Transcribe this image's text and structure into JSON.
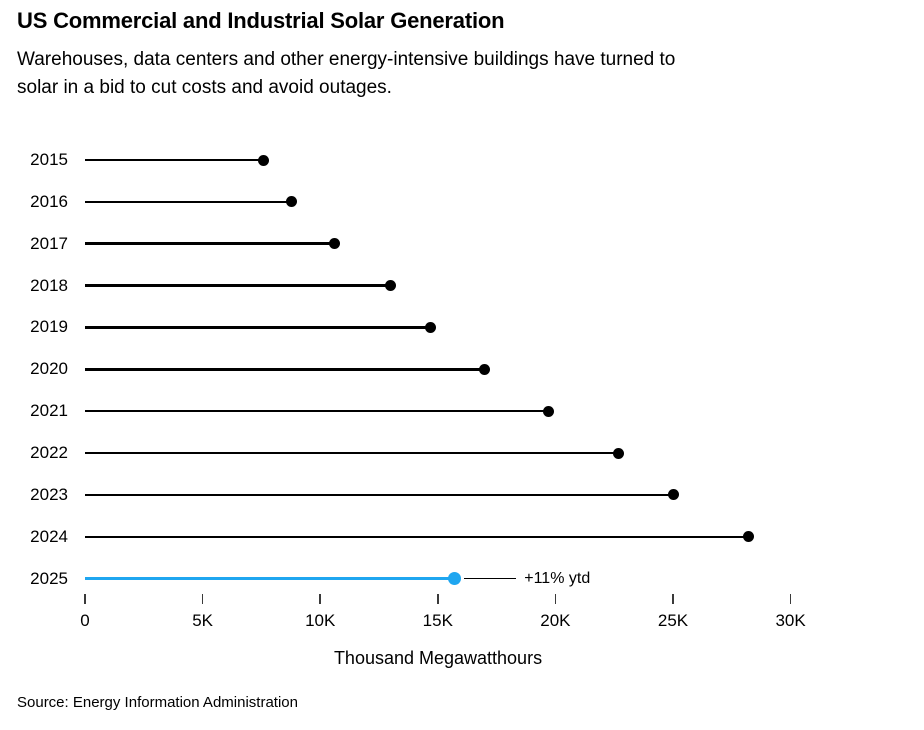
{
  "header": {
    "title": "US Commercial and Industrial Solar Generation",
    "subtitle_line1": "Warehouses, data centers and other energy-intensive buildings have turned to",
    "subtitle_line2": "solar in a bid to cut costs and avoid outages."
  },
  "chart_data": {
    "type": "bar",
    "subtype": "lollipop",
    "orientation": "horizontal",
    "title": "US Commercial and Industrial Solar Generation",
    "subtitle": "Warehouses, data centers and other energy-intensive buildings have turned to solar in a bid to cut costs and avoid outages.",
    "categories": [
      "2015",
      "2016",
      "2017",
      "2018",
      "2019",
      "2020",
      "2021",
      "2022",
      "2023",
      "2024",
      "2025"
    ],
    "values": [
      7600,
      8800,
      10600,
      13000,
      14700,
      17000,
      19700,
      22700,
      25000,
      28200,
      15700
    ],
    "units": "Thousand Megawatthours",
    "xlabel": "Thousand Megawatthours",
    "ylabel": "",
    "xlim": [
      0,
      30000
    ],
    "x_tick_values": [
      0,
      5000,
      10000,
      15000,
      20000,
      25000,
      30000
    ],
    "x_tick_labels": [
      "0",
      "5K",
      "10K",
      "15K",
      "20K",
      "25K",
      "30K"
    ],
    "grid": false,
    "legend": "none",
    "default_color": "#000000",
    "highlight": {
      "category": "2025",
      "color": "#1FA6F0",
      "annotation": "+11% ytd"
    }
  },
  "footer": {
    "source": "Source: Energy Information Administration"
  }
}
